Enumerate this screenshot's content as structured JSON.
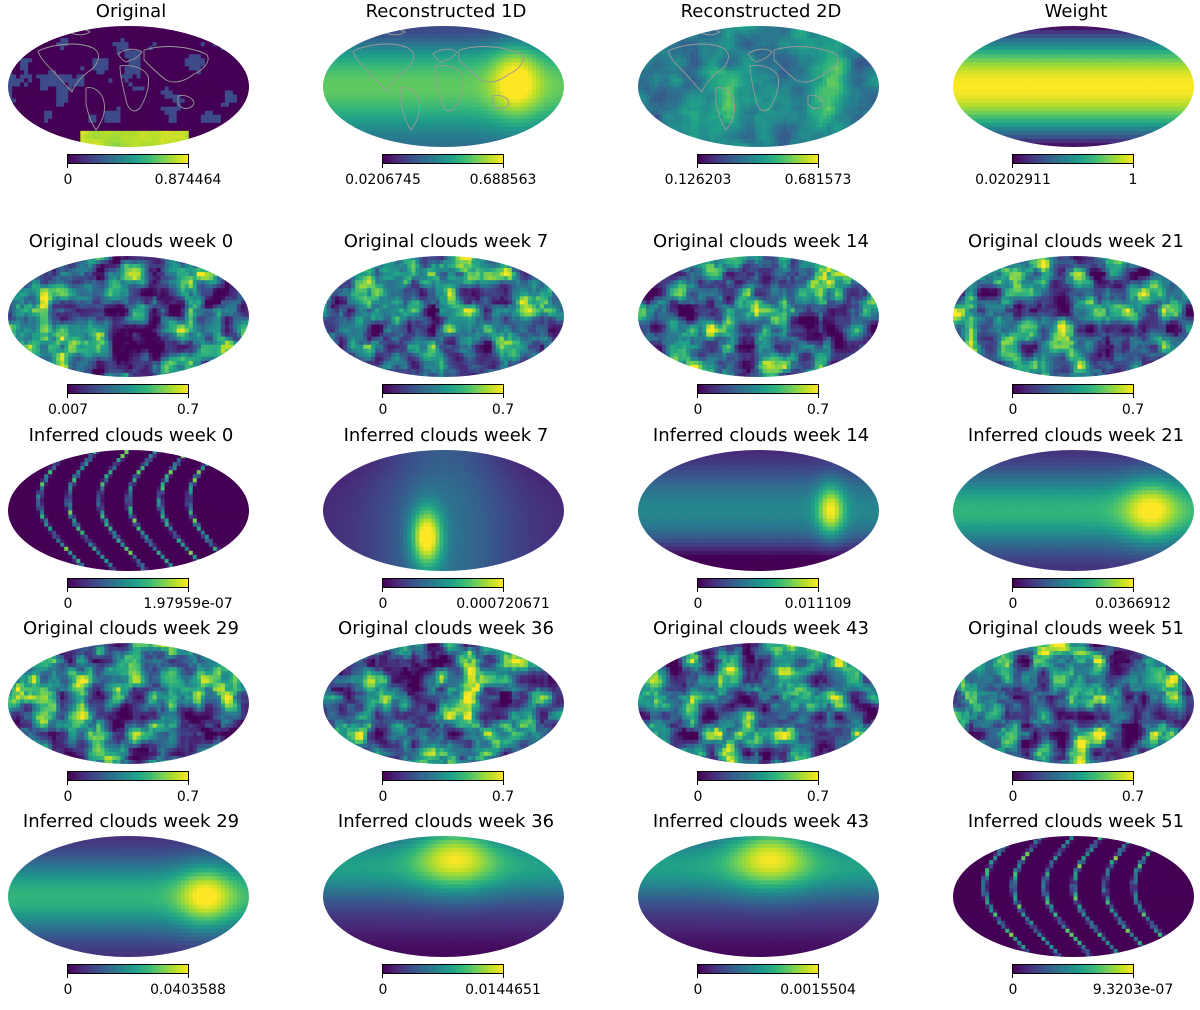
{
  "chart_data": {
    "type": "heatmap",
    "layout": {
      "columns": 4,
      "rows": 5
    },
    "projection": "mollweide",
    "colormap": "viridis",
    "colormap_stops": [
      "#440154",
      "#482878",
      "#3e4989",
      "#31688e",
      "#26828e",
      "#1f9e89",
      "#35b779",
      "#6ece58",
      "#b5de2b",
      "#fde725"
    ],
    "coastline_color": "#999999",
    "panels": [
      {
        "title": "Original",
        "cmin": "0",
        "cmax": "0.874464",
        "pattern": "land",
        "coastlines": true
      },
      {
        "title": "Reconstructed 1D",
        "cmin": "0.0206745",
        "cmax": "0.688563",
        "pattern": "recon1d",
        "coastlines": true
      },
      {
        "title": "Reconstructed 2D",
        "cmin": "0.126203",
        "cmax": "0.681573",
        "pattern": "recon2d",
        "coastlines": true
      },
      {
        "title": "Weight",
        "cmin": "0.0202911",
        "cmax": "1",
        "pattern": "weight",
        "coastlines": false
      },
      {
        "title": "Original clouds week 0",
        "cmin": "0.007",
        "cmax": "0.7",
        "pattern": "clouds",
        "coastlines": false
      },
      {
        "title": "Original clouds week 7",
        "cmin": "0",
        "cmax": "0.7",
        "pattern": "clouds",
        "coastlines": false
      },
      {
        "title": "Original clouds week 14",
        "cmin": "0",
        "cmax": "0.7",
        "pattern": "clouds",
        "coastlines": false
      },
      {
        "title": "Original clouds week 21",
        "cmin": "0",
        "cmax": "0.7",
        "pattern": "clouds",
        "coastlines": false
      },
      {
        "title": "Inferred clouds week 0",
        "cmin": "0",
        "cmax": "1.97959e-07",
        "pattern": "stripes",
        "coastlines": false
      },
      {
        "title": "Inferred clouds week 7",
        "cmin": "0",
        "cmax": "0.000720671",
        "pattern": "blob-low",
        "coastlines": false
      },
      {
        "title": "Inferred clouds week 14",
        "cmin": "0",
        "cmax": "0.011109",
        "pattern": "blob-right",
        "coastlines": false
      },
      {
        "title": "Inferred clouds week 21",
        "cmin": "0",
        "cmax": "0.0366912",
        "pattern": "band-right",
        "coastlines": false
      },
      {
        "title": "Original clouds week 29",
        "cmin": "0",
        "cmax": "0.7",
        "pattern": "clouds",
        "coastlines": false
      },
      {
        "title": "Original clouds week 36",
        "cmin": "0",
        "cmax": "0.7",
        "pattern": "clouds",
        "coastlines": false
      },
      {
        "title": "Original clouds week 43",
        "cmin": "0",
        "cmax": "0.7",
        "pattern": "clouds",
        "coastlines": false
      },
      {
        "title": "Original clouds week 51",
        "cmin": "0",
        "cmax": "0.7",
        "pattern": "clouds",
        "coastlines": false
      },
      {
        "title": "Inferred clouds week 29",
        "cmin": "0",
        "cmax": "0.0403588",
        "pattern": "band-right",
        "coastlines": false
      },
      {
        "title": "Inferred clouds week 36",
        "cmin": "0",
        "cmax": "0.0144651",
        "pattern": "blob-top",
        "coastlines": false
      },
      {
        "title": "Inferred clouds week 43",
        "cmin": "0",
        "cmax": "0.0015504",
        "pattern": "blob-top",
        "coastlines": false
      },
      {
        "title": "Inferred clouds week 51",
        "cmin": "0",
        "cmax": "9.3203e-07",
        "pattern": "stripes",
        "coastlines": false
      }
    ]
  }
}
